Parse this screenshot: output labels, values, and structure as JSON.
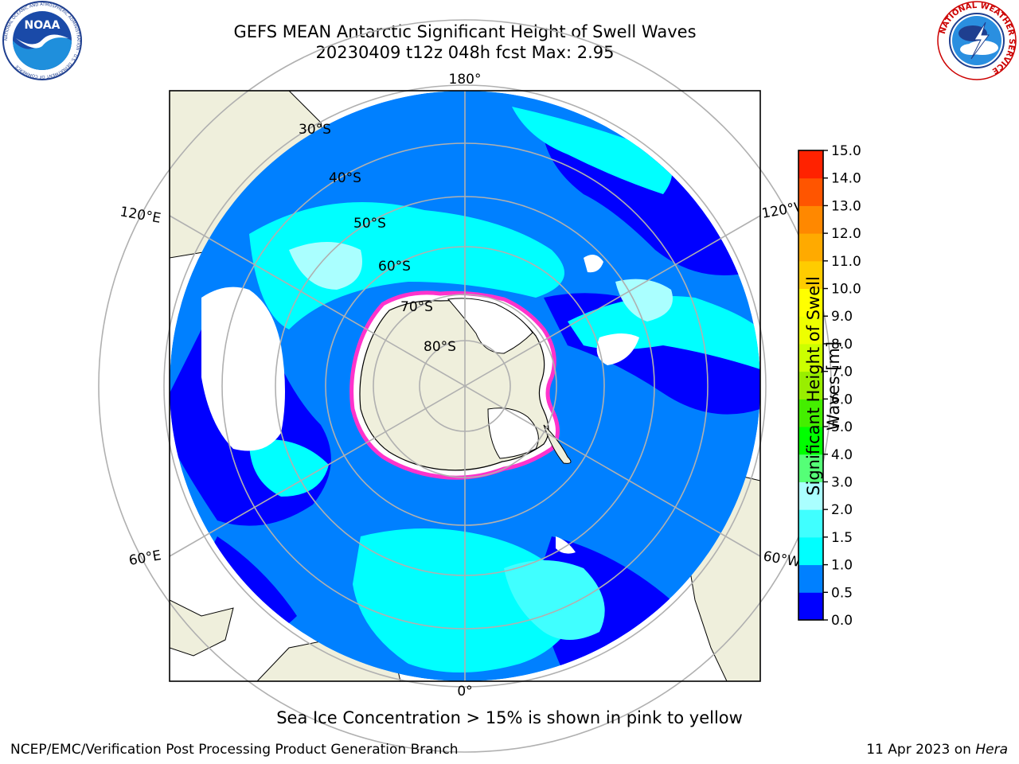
{
  "header": {
    "title_line1": "GEFS MEAN Antarctic Significant Height of Swell Waves",
    "title_line2": "20230409 t12z 048h fcst   Max: 2.95"
  },
  "logos": {
    "noaa": {
      "text": "NOAA",
      "ring_text": "NATIONAL OCEANIC AND ATMOSPHERIC ADMINISTRATION · U.S. DEPARTMENT OF COMMERCE",
      "icon": "noaa-seagull-logo"
    },
    "nws": {
      "ring_text": "NATIONAL WEATHER SERVICE",
      "icon": "nws-tornado-logo"
    }
  },
  "map": {
    "projection": "south-polar-stereographic",
    "longitude_labels": {
      "top": "180°",
      "bottom": "0°",
      "left_upper": "120°E",
      "left_lower": "60°E",
      "right_upper": "120°W",
      "right_lower": "60°W"
    },
    "latitude_labels": [
      "30°S",
      "40°S",
      "50°S",
      "60°S",
      "70°S",
      "80°S"
    ],
    "colors": {
      "land": "#efefdc",
      "ice_free_ocean": "#ffffff",
      "grid": "#b0b0b0",
      "sea_ice_edge": "#ff33cc"
    }
  },
  "colorbar": {
    "label": "Significant Height of Swell Waves [m]",
    "ticks": [
      "0.0",
      "0.5",
      "1.0",
      "1.5",
      "2.0",
      "3.0",
      "4.0",
      "5.0",
      "6.0",
      "7.0",
      "8.0",
      "9.0",
      "10.0",
      "11.0",
      "12.0",
      "13.0",
      "14.0",
      "15.0"
    ],
    "colors": [
      "#0000ff",
      "#0080ff",
      "#00ffff",
      "#40ffff",
      "#aaffff",
      "#55ff77",
      "#00ff00",
      "#44ee00",
      "#99ee00",
      "#ccff00",
      "#eeff00",
      "#ffff00",
      "#ffcc00",
      "#ffaa00",
      "#ff8800",
      "#ff5500",
      "#ff2200"
    ]
  },
  "note": "Sea Ice Concentration > 15% is shown in pink to yellow",
  "footer": {
    "left": "NCEP/EMC/Verification Post Processing Product Generation Branch",
    "right_date": "11 Apr 2023 on",
    "right_machine": "Hera"
  }
}
